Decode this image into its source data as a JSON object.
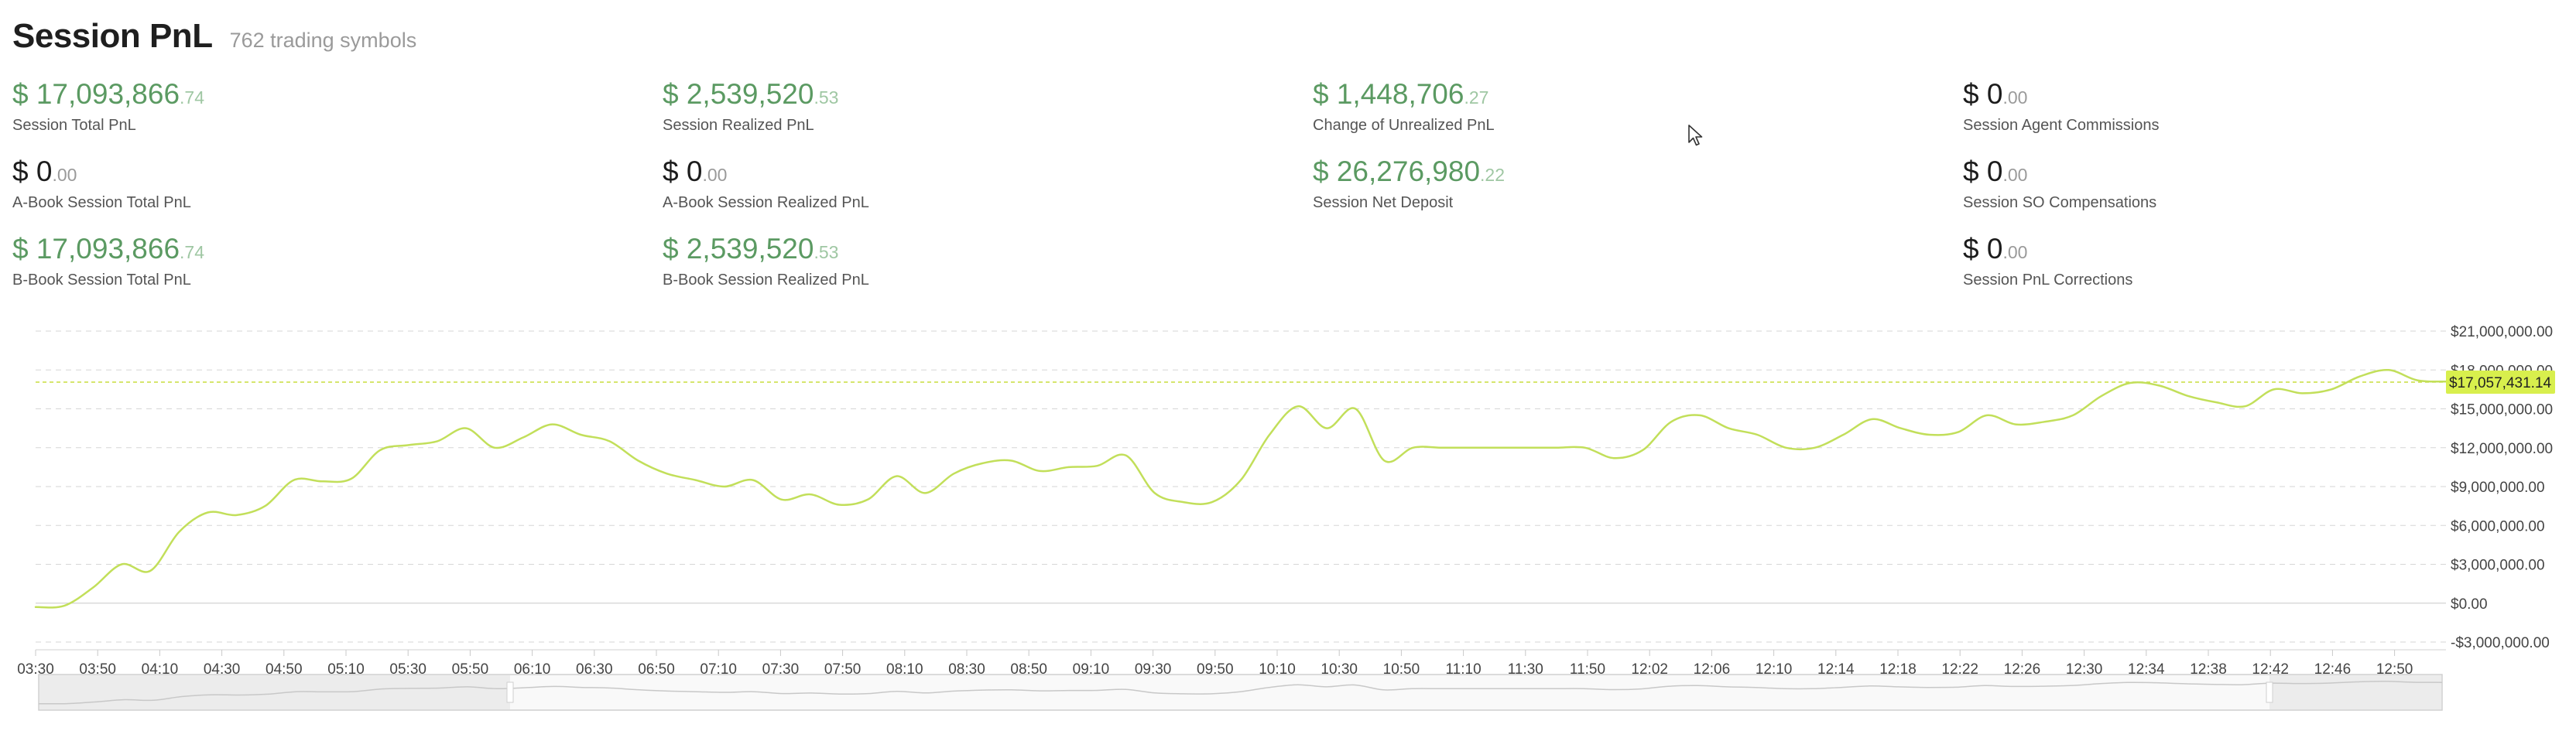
{
  "header": {
    "title": "Session PnL",
    "subtitle": "762 trading symbols"
  },
  "metrics": [
    {
      "int": "$ 17,093,866",
      "dec": ".74",
      "label": "Session Total PnL",
      "color": "green"
    },
    {
      "int": "$ 2,539,520",
      "dec": ".53",
      "label": "Session Realized PnL",
      "color": "green"
    },
    {
      "int": "$ 1,448,706",
      "dec": ".27",
      "label": "Change of Unrealized PnL",
      "color": "green"
    },
    {
      "int": "$ 0",
      "dec": ".00",
      "label": "Session Agent Commissions",
      "color": "black"
    },
    {
      "int": "$ 0",
      "dec": ".00",
      "label": "A-Book Session Total PnL",
      "color": "black"
    },
    {
      "int": "$ 0",
      "dec": ".00",
      "label": "A-Book Session Realized PnL",
      "color": "black"
    },
    {
      "int": "$ 26,276,980",
      "dec": ".22",
      "label": "Session Net Deposit",
      "color": "green"
    },
    {
      "int": "$ 0",
      "dec": ".00",
      "label": "Session SO Compensations",
      "color": "black"
    },
    {
      "int": "$ 17,093,866",
      "dec": ".74",
      "label": "B-Book Session Total PnL",
      "color": "green"
    },
    {
      "int": "$ 2,539,520",
      "dec": ".53",
      "label": "B-Book Session Realized PnL",
      "color": "green"
    },
    {
      "int": "$ 0",
      "dec": ".00",
      "label": "Session PnL Corrections",
      "color": "black"
    }
  ],
  "colors": {
    "line": "#c2df5a",
    "accent_green": "#5b9a62",
    "grid": "#d6d6d6",
    "badge": "#d8ef4d"
  },
  "icons": {
    "cursor": "mouse-pointer-icon"
  },
  "chart_data": {
    "type": "line",
    "title": "",
    "xlabel": "",
    "ylabel": "",
    "ylim": [
      -3000000,
      21000000
    ],
    "y_ticks": [
      21000000,
      18000000,
      15000000,
      12000000,
      9000000,
      6000000,
      3000000,
      0,
      -3000000
    ],
    "y_tick_labels": [
      "$21,000,000.00",
      "$18,000,000.00",
      "$15,000,000.00",
      "$12,000,000.00",
      "$9,000,000.00",
      "$6,000,000.00",
      "$3,000,000.00",
      "$0.00",
      "-$3,000,000.00"
    ],
    "x_tick_labels": [
      "03:30",
      "03:50",
      "04:10",
      "04:30",
      "04:50",
      "05:10",
      "05:30",
      "05:50",
      "06:10",
      "06:30",
      "06:50",
      "07:10",
      "07:30",
      "07:50",
      "08:10",
      "08:30",
      "08:50",
      "09:10",
      "09:30",
      "09:50",
      "10:10",
      "10:30",
      "10:50",
      "11:10",
      "11:30",
      "11:50",
      "12:02",
      "12:06",
      "12:10",
      "12:14",
      "12:18",
      "12:22",
      "12:26",
      "12:30",
      "12:34",
      "12:38",
      "12:42",
      "12:46",
      "12:50"
    ],
    "current_value": 17057431.14,
    "current_label": "$17,057,431.14",
    "grid": true,
    "series": [
      {
        "values": [
          -300000,
          -200000,
          1200000,
          3000000,
          2500000,
          5500000,
          7000000,
          6800000,
          7500000,
          9500000,
          9400000,
          9600000,
          11800000,
          12200000,
          12500000,
          13500000,
          12000000,
          12800000,
          13800000,
          13000000,
          12500000,
          11000000,
          10000000,
          9500000,
          9000000,
          9500000,
          8000000,
          8400000,
          7600000,
          8000000,
          9800000,
          8500000,
          10000000,
          10800000,
          11000000,
          10200000,
          10500000,
          10600000,
          11400000,
          8500000,
          7800000,
          7800000,
          9500000,
          13000000,
          15200000,
          13500000,
          15000000,
          11000000,
          12000000,
          12000000,
          12000000,
          12000000,
          12000000,
          12000000,
          12000000,
          11200000,
          11800000,
          14000000,
          14500000,
          13500000,
          13000000,
          12000000,
          12000000,
          13000000,
          14200000,
          13500000,
          13000000,
          13200000,
          14500000,
          13800000,
          14000000,
          14500000,
          16000000,
          17000000,
          16800000,
          16000000,
          15500000,
          15200000,
          16500000,
          16200000,
          16500000,
          17500000,
          18000000,
          17200000,
          17100000
        ]
      }
    ]
  }
}
